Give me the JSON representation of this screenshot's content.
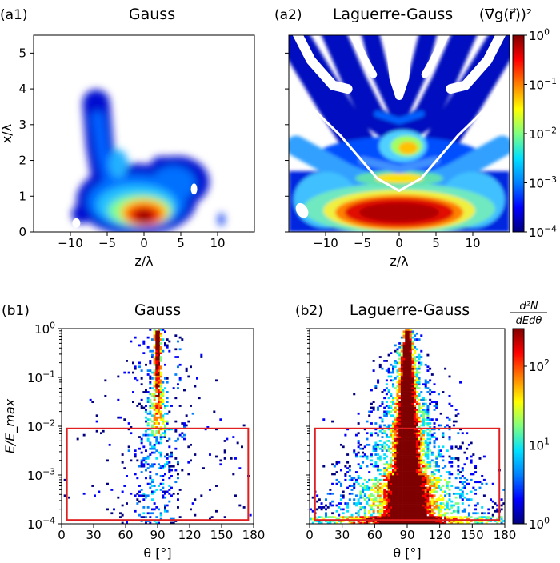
{
  "colors": {
    "frame": "#000000",
    "box": "#e02020",
    "cmap": [
      "#00007f",
      "#0000ff",
      "#0080ff",
      "#00e0ff",
      "#7fff80",
      "#ffff00",
      "#ff8000",
      "#ff0000",
      "#7f0000"
    ]
  },
  "chart_data": [
    {
      "id": "a1",
      "type": "heatmap",
      "panel_label": "(a1)",
      "title": "Gauss",
      "xlabel": "z/λ",
      "ylabel": "x/λ",
      "xlim": [
        -15,
        15
      ],
      "ylim": [
        0,
        5.5
      ],
      "xticks": [
        {
          "v": -10,
          "t": "−10"
        },
        {
          "v": -5,
          "t": "−5"
        },
        {
          "v": 0,
          "t": "0"
        },
        {
          "v": 5,
          "t": "5"
        },
        {
          "v": 10,
          "t": "10"
        }
      ],
      "yticks": [
        {
          "v": 0,
          "t": "0"
        },
        {
          "v": 1,
          "t": "1"
        },
        {
          "v": 2,
          "t": "2"
        },
        {
          "v": 3,
          "t": "3"
        },
        {
          "v": 4,
          "t": "4"
        },
        {
          "v": 5,
          "t": "5"
        }
      ]
    },
    {
      "id": "a2",
      "type": "heatmap",
      "panel_label": "(a2)",
      "title": "Laguerre-Gauss",
      "xlabel": "z/λ",
      "xlim": [
        -15,
        15
      ],
      "ylim": [
        0,
        5.5
      ],
      "xticks": [
        {
          "v": -10,
          "t": "−10"
        },
        {
          "v": -5,
          "t": "−5"
        },
        {
          "v": 0,
          "t": "0"
        },
        {
          "v": 5,
          "t": "5"
        },
        {
          "v": 10,
          "t": "10"
        }
      ],
      "colorbar": {
        "title": "(∇⃗g(r⃗))²",
        "scale": "log",
        "range": [
          0.0001,
          1
        ],
        "ticks": [
          {
            "e": 0,
            "base": "10",
            "exp": "0"
          },
          {
            "e": -1,
            "base": "10",
            "exp": "−1"
          },
          {
            "e": -2,
            "base": "10",
            "exp": "−2"
          },
          {
            "e": -3,
            "base": "10",
            "exp": "−3"
          },
          {
            "e": -4,
            "base": "10",
            "exp": "−4"
          }
        ]
      }
    },
    {
      "id": "b1",
      "type": "heatmap",
      "panel_label": "(b1)",
      "title": "Gauss",
      "xlabel": "θ [°]",
      "ylabel": "E/E_max",
      "xlim": [
        0,
        180
      ],
      "ylim": [
        0.0001,
        1
      ],
      "yscale": "log",
      "xticks": [
        {
          "v": 0,
          "t": "0"
        },
        {
          "v": 30,
          "t": "30"
        },
        {
          "v": 60,
          "t": "60"
        },
        {
          "v": 90,
          "t": "90"
        },
        {
          "v": 120,
          "t": "120"
        },
        {
          "v": 150,
          "t": "150"
        },
        {
          "v": 180,
          "t": "180"
        }
      ],
      "yticks": [
        {
          "e": 0,
          "exp": "0"
        },
        {
          "e": -1,
          "exp": "−1"
        },
        {
          "e": -2,
          "exp": "−2"
        },
        {
          "e": -3,
          "exp": "−3"
        },
        {
          "e": -4,
          "exp": "−4"
        }
      ],
      "highlight_box": {
        "x": [
          5,
          175
        ],
        "y": [
          0.00012,
          0.009
        ]
      }
    },
    {
      "id": "b2",
      "type": "heatmap",
      "panel_label": "(b2)",
      "title": "Laguerre-Gauss",
      "xlabel": "θ [°]",
      "xlim": [
        0,
        180
      ],
      "ylim": [
        0.0001,
        1
      ],
      "yscale": "log",
      "xticks": [
        {
          "v": 0,
          "t": "0"
        },
        {
          "v": 30,
          "t": "30"
        },
        {
          "v": 60,
          "t": "60"
        },
        {
          "v": 90,
          "t": "90"
        },
        {
          "v": 120,
          "t": "120"
        },
        {
          "v": 150,
          "t": "150"
        },
        {
          "v": 180,
          "t": "180"
        }
      ],
      "highlight_box": {
        "x": [
          5,
          175
        ],
        "y": [
          0.00012,
          0.009
        ]
      },
      "colorbar": {
        "title_num": "d²N",
        "title_den": "dEdθ",
        "scale": "log",
        "range": [
          1,
          300
        ],
        "ticks": [
          {
            "e": 2,
            "base": "10",
            "exp": "2"
          },
          {
            "e": 1,
            "base": "10",
            "exp": "1"
          },
          {
            "e": 0,
            "base": "10",
            "exp": "0"
          }
        ]
      }
    }
  ]
}
